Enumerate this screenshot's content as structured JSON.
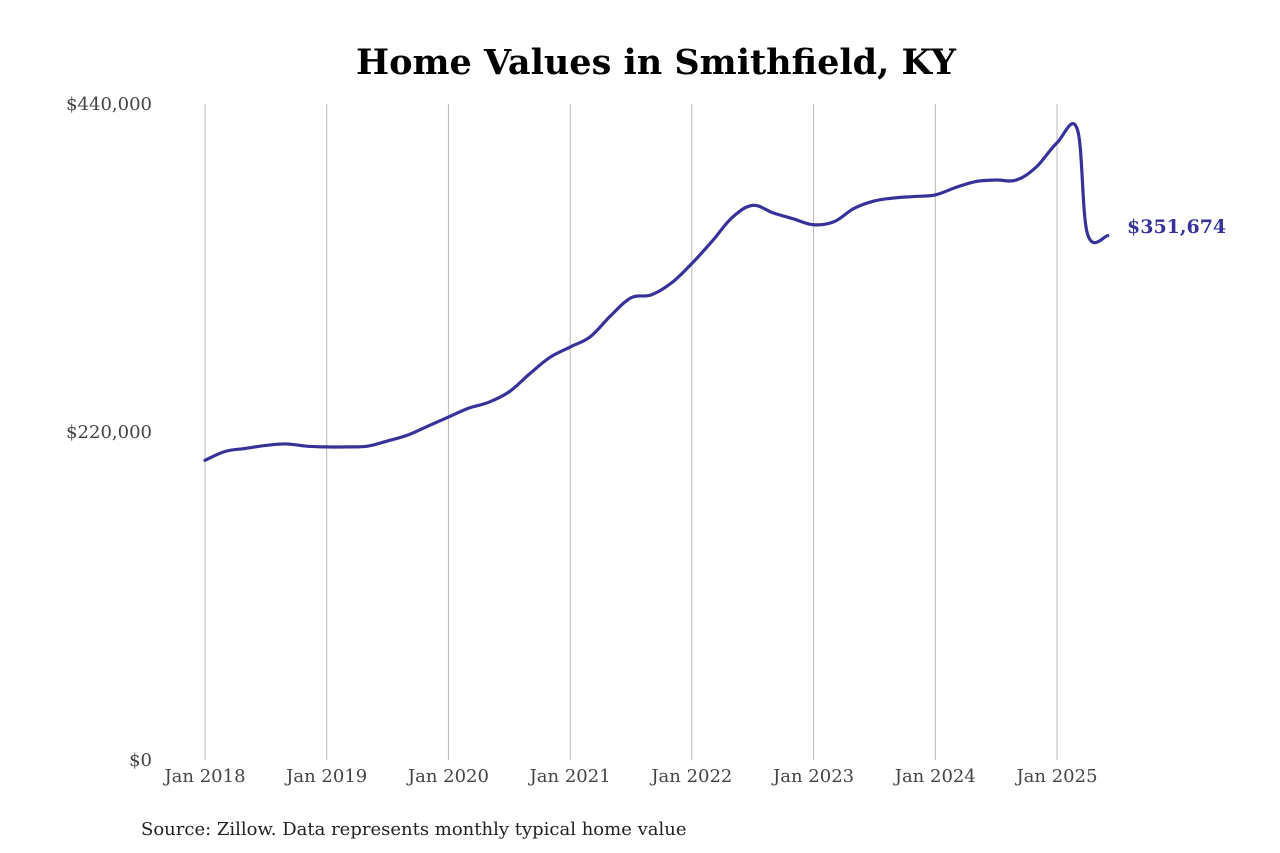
{
  "chart_data": {
    "type": "line",
    "title": "Home Values in Smithfield, KY",
    "xlabel": "",
    "ylabel": "",
    "ylim": [
      0,
      440000
    ],
    "yticks": [
      {
        "value": 0,
        "label": "$0"
      },
      {
        "value": 220000,
        "label": "$220,000"
      },
      {
        "value": 440000,
        "label": "$440,000"
      }
    ],
    "xticks": [
      {
        "value": 2018.0,
        "label": "Jan 2018"
      },
      {
        "value": 2019.0,
        "label": "Jan 2019"
      },
      {
        "value": 2020.0,
        "label": "Jan 2020"
      },
      {
        "value": 2021.0,
        "label": "Jan 2021"
      },
      {
        "value": 2022.0,
        "label": "Jan 2022"
      },
      {
        "value": 2023.0,
        "label": "Jan 2023"
      },
      {
        "value": 2024.0,
        "label": "Jan 2024"
      },
      {
        "value": 2025.0,
        "label": "Jan 2025"
      }
    ],
    "xlim": [
      2017.5,
      2025.9
    ],
    "grid": "vertical",
    "line_color": "#36329a",
    "series": [
      {
        "x": [
          2018.0,
          2018.167,
          2018.333,
          2018.5,
          2018.667,
          2018.833,
          2019.0,
          2019.167,
          2019.333,
          2019.5,
          2019.667,
          2019.833,
          2020.0,
          2020.167,
          2020.333,
          2020.5,
          2020.667,
          2020.833,
          2021.0,
          2021.167,
          2021.333,
          2021.5,
          2021.667,
          2021.833,
          2022.0,
          2022.167,
          2022.333,
          2022.5,
          2022.667,
          2022.833,
          2023.0,
          2023.167,
          2023.333,
          2023.5,
          2023.667,
          2023.833,
          2024.0,
          2024.167,
          2024.333,
          2024.5,
          2024.667,
          2024.833,
          2025.0,
          2025.167,
          2025.25,
          2025.417
        ],
        "values": [
          201000,
          207000,
          209000,
          211000,
          212000,
          210500,
          210000,
          210000,
          210500,
          214000,
          218000,
          224000,
          230000,
          236000,
          240000,
          247000,
          259000,
          270000,
          277000,
          284000,
          298000,
          310000,
          312000,
          320000,
          333000,
          348000,
          364000,
          372000,
          367000,
          363000,
          359000,
          361000,
          370000,
          375000,
          377000,
          378000,
          379000,
          384000,
          388000,
          389000,
          389000,
          398000,
          414000,
          423000,
          353000,
          351674
        ]
      }
    ],
    "end_label": "$351,674"
  },
  "source": "Source: Zillow. Data represents monthly typical home value"
}
